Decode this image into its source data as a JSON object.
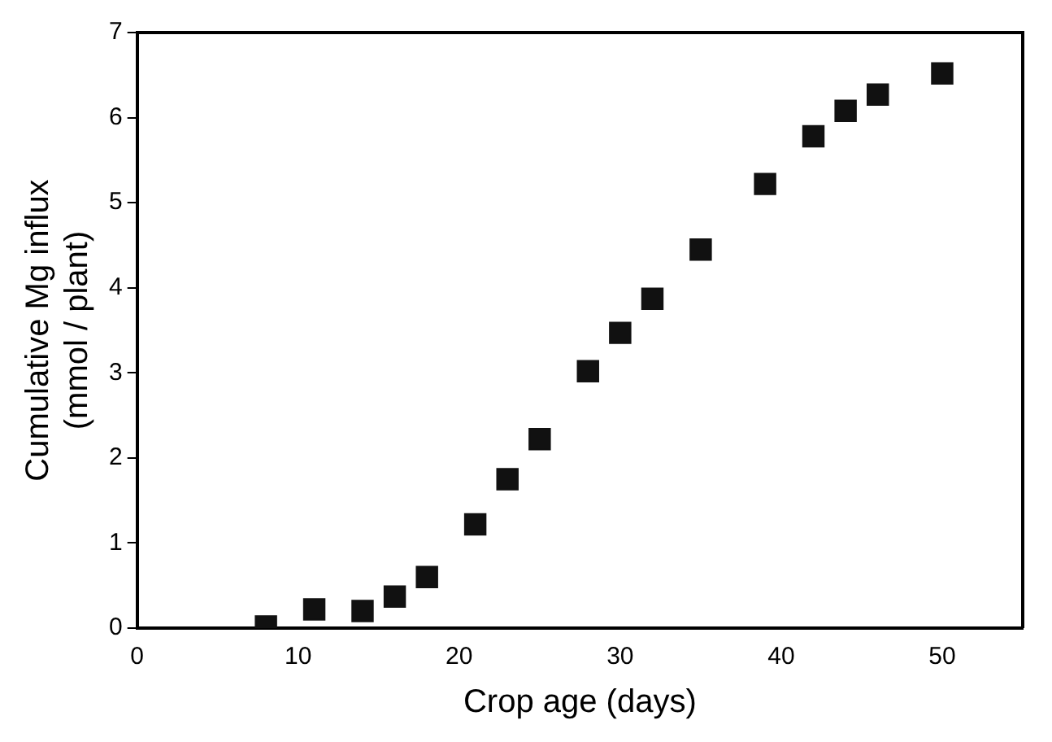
{
  "chart_data": {
    "type": "scatter",
    "xlabel": "Crop age (days)",
    "ylabel": "Cumulative Mg influx\n(mmol / plant)",
    "x": [
      8,
      11,
      14,
      16,
      18,
      21,
      23,
      25,
      28,
      30,
      32,
      35,
      39,
      42,
      44,
      46,
      50
    ],
    "series": [
      {
        "color": "#111111",
        "values": [
          0.02,
          0.22,
          0.2,
          0.37,
          0.6,
          1.22,
          1.75,
          2.22,
          3.02,
          3.47,
          3.87,
          4.45,
          5.22,
          5.78,
          6.08,
          6.27,
          6.52
        ]
      }
    ],
    "xlim": [
      0,
      55
    ],
    "xticks": [
      0,
      10,
      20,
      30,
      40,
      50
    ],
    "ylim": [
      0,
      7
    ],
    "yticks": [
      0,
      1,
      2,
      3,
      4,
      5,
      6,
      7
    ],
    "marker": "square",
    "grid": false,
    "legend": false
  }
}
